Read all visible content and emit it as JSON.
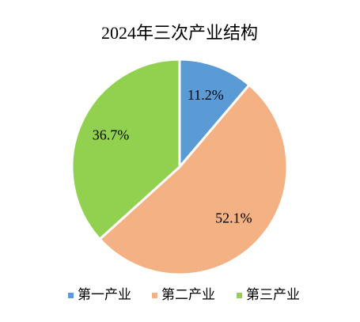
{
  "chart_data": {
    "type": "pie",
    "title": "2024年三次产业结构",
    "categories": [
      "第一产业",
      "第二产业",
      "第三产业"
    ],
    "values": [
      11.2,
      52.1,
      36.7
    ],
    "value_labels": [
      "11.2%",
      "52.1%",
      "36.7%"
    ],
    "colors": [
      "#5b9bd5",
      "#f4b183",
      "#92d050"
    ],
    "legend": "bottom"
  }
}
